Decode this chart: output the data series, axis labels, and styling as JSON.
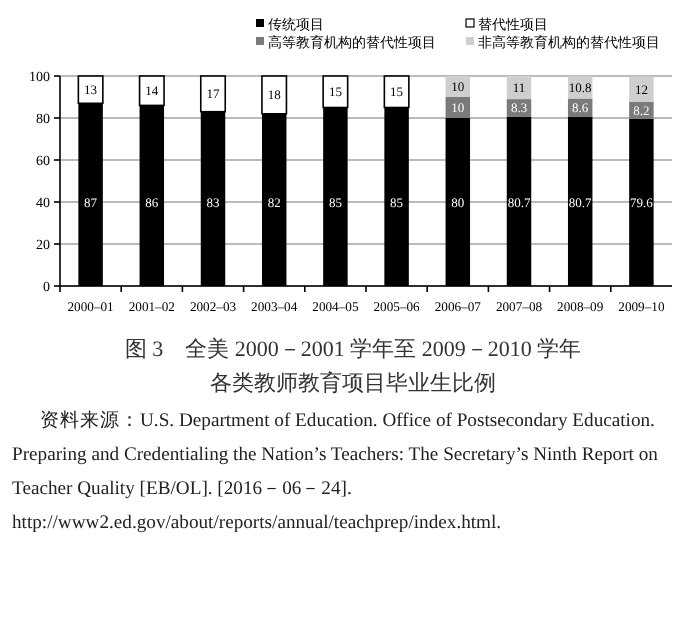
{
  "chart_data": {
    "type": "bar",
    "stacked": true,
    "title": "图 3　全美 2000－2001 学年至 2009－2010 学年",
    "subtitle": "各类教师教育项目毕业生比例",
    "annotations": [
      "资料来源：U.S. Department of Education. Office of Postsecondary Education. Preparing and Credentialing the Nation’s Teachers: The Secretary’s Ninth Report on Teacher Quality [EB/OL]. [2016－06－24]. http://www2.ed.gov/about/reports/annual/teachprep/index.html."
    ],
    "categories": [
      "2000–01",
      "2001–02",
      "2002–03",
      "2003–04",
      "2004–05",
      "2005–06",
      "2006–07",
      "2007–08",
      "2008–09",
      "2009–10"
    ],
    "series": [
      {
        "name": "传统项目",
        "color": "#000000",
        "values": [
          87,
          86,
          83,
          82,
          85,
          85,
          80,
          80.7,
          80.7,
          79.6
        ]
      },
      {
        "name": "替代性项目",
        "color": "#ffffff",
        "values": [
          13,
          14,
          17,
          18,
          15,
          15,
          null,
          null,
          null,
          null
        ]
      },
      {
        "name": "高等教育机构的替代性项目",
        "color": "#7a7a7a",
        "values": [
          null,
          null,
          null,
          null,
          null,
          null,
          10,
          8.3,
          8.6,
          8.2
        ]
      },
      {
        "name": "非高等教育机构的替代性项目",
        "color": "#cfcfcf",
        "values": [
          null,
          null,
          null,
          null,
          null,
          null,
          10,
          11,
          10.8,
          12
        ]
      }
    ],
    "ylim": [
      0,
      100
    ],
    "yticks": [
      0,
      20,
      40,
      60,
      80,
      100
    ],
    "grid": "y",
    "legend": "top",
    "data_labels": true
  }
}
